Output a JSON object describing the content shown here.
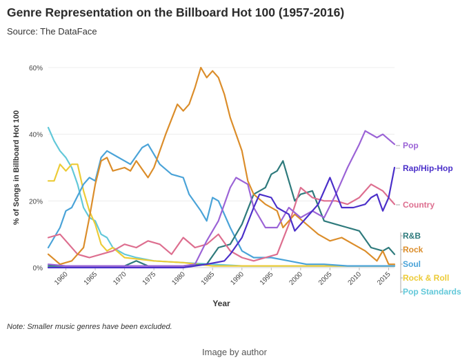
{
  "header": {
    "title": "Genre Representation on the Billboard Hot 100 (1957-2016)",
    "subtitle": "Source: The DataFace"
  },
  "footer": {
    "note": "Note: Smaller music genres have been excluded.",
    "caption": "Image by author"
  },
  "chart_data": {
    "type": "line",
    "title": "Genre Representation on the Billboard Hot 100 (1957-2016)",
    "xlabel": "Year",
    "ylabel": "% of Songs in Billboard Hot 100",
    "xlim": [
      1957,
      2016
    ],
    "ylim": [
      0,
      60
    ],
    "x_ticks": [
      1960,
      1965,
      1970,
      1975,
      1980,
      1985,
      1990,
      1995,
      2000,
      2005,
      2010,
      2015
    ],
    "y_ticks": [
      0,
      20,
      40,
      60
    ],
    "y_tick_labels": [
      "0%",
      "20%",
      "40%",
      "60%"
    ],
    "grid": "horizontal",
    "legend": "direct labels right of lines",
    "series": [
      {
        "name": "Pop",
        "color": "#9b63d6",
        "points": [
          [
            1957,
            1
          ],
          [
            1960,
            0.5
          ],
          [
            1965,
            0.5
          ],
          [
            1970,
            0.5
          ],
          [
            1975,
            0.5
          ],
          [
            1980,
            0.5
          ],
          [
            1982,
            1
          ],
          [
            1984,
            8
          ],
          [
            1986,
            14
          ],
          [
            1988,
            24
          ],
          [
            1989,
            27
          ],
          [
            1991,
            25
          ],
          [
            1992,
            18
          ],
          [
            1994,
            12
          ],
          [
            1996,
            12
          ],
          [
            1998,
            18
          ],
          [
            2000,
            15
          ],
          [
            2002,
            17
          ],
          [
            2004,
            15
          ],
          [
            2006,
            22
          ],
          [
            2008,
            30
          ],
          [
            2010,
            37
          ],
          [
            2011,
            41
          ],
          [
            2013,
            39
          ],
          [
            2014,
            40
          ],
          [
            2016,
            37
          ]
        ]
      },
      {
        "name": "Rap/Hip-Hop",
        "color": "#4a2fc9",
        "points": [
          [
            1957,
            0
          ],
          [
            1978,
            0
          ],
          [
            1980,
            0
          ],
          [
            1984,
            1
          ],
          [
            1987,
            2
          ],
          [
            1988,
            4
          ],
          [
            1990,
            9
          ],
          [
            1992,
            18
          ],
          [
            1993,
            22
          ],
          [
            1995,
            21
          ],
          [
            1996,
            18
          ],
          [
            1998,
            16
          ],
          [
            1999,
            11
          ],
          [
            2001,
            15
          ],
          [
            2003,
            19
          ],
          [
            2005,
            27
          ],
          [
            2007,
            18
          ],
          [
            2009,
            18
          ],
          [
            2011,
            19
          ],
          [
            2012,
            21
          ],
          [
            2013,
            22
          ],
          [
            2014,
            17
          ],
          [
            2015,
            21
          ],
          [
            2016,
            30
          ]
        ]
      },
      {
        "name": "Country",
        "color": "#dd6e8f",
        "points": [
          [
            1957,
            9
          ],
          [
            1959,
            10
          ],
          [
            1960,
            8
          ],
          [
            1962,
            4
          ],
          [
            1964,
            3
          ],
          [
            1966,
            4
          ],
          [
            1968,
            5
          ],
          [
            1970,
            7
          ],
          [
            1972,
            6
          ],
          [
            1974,
            8
          ],
          [
            1976,
            7
          ],
          [
            1978,
            4
          ],
          [
            1980,
            9
          ],
          [
            1982,
            6
          ],
          [
            1984,
            7
          ],
          [
            1986,
            10
          ],
          [
            1988,
            5
          ],
          [
            1990,
            3
          ],
          [
            1992,
            2
          ],
          [
            1994,
            3
          ],
          [
            1996,
            4
          ],
          [
            1998,
            13
          ],
          [
            2000,
            24
          ],
          [
            2002,
            21
          ],
          [
            2004,
            20
          ],
          [
            2006,
            20
          ],
          [
            2008,
            19
          ],
          [
            2010,
            21
          ],
          [
            2012,
            25
          ],
          [
            2014,
            23
          ],
          [
            2016,
            19
          ]
        ]
      },
      {
        "name": "R&B",
        "color": "#2e7a7c",
        "points": [
          [
            1957,
            0.5
          ],
          [
            1960,
            0.5
          ],
          [
            1965,
            0.5
          ],
          [
            1970,
            0.5
          ],
          [
            1972,
            2
          ],
          [
            1974,
            0.5
          ],
          [
            1980,
            0.5
          ],
          [
            1984,
            1
          ],
          [
            1986,
            6
          ],
          [
            1988,
            7
          ],
          [
            1990,
            13
          ],
          [
            1992,
            22
          ],
          [
            1994,
            24
          ],
          [
            1995,
            28
          ],
          [
            1996,
            29
          ],
          [
            1997,
            32
          ],
          [
            1998,
            26
          ],
          [
            1999,
            20
          ],
          [
            2000,
            22
          ],
          [
            2002,
            23
          ],
          [
            2004,
            14
          ],
          [
            2006,
            13
          ],
          [
            2008,
            12
          ],
          [
            2010,
            11
          ],
          [
            2012,
            6
          ],
          [
            2014,
            5
          ],
          [
            2015,
            6
          ],
          [
            2016,
            4
          ]
        ]
      },
      {
        "name": "Rock",
        "color": "#db8d2a",
        "points": [
          [
            1957,
            4
          ],
          [
            1959,
            1
          ],
          [
            1961,
            2
          ],
          [
            1963,
            6
          ],
          [
            1964,
            15
          ],
          [
            1965,
            25
          ],
          [
            1966,
            32
          ],
          [
            1967,
            33
          ],
          [
            1968,
            29
          ],
          [
            1970,
            30
          ],
          [
            1971,
            29
          ],
          [
            1972,
            32
          ],
          [
            1974,
            27
          ],
          [
            1975,
            30
          ],
          [
            1977,
            40
          ],
          [
            1979,
            49
          ],
          [
            1980,
            47
          ],
          [
            1981,
            49
          ],
          [
            1982,
            54
          ],
          [
            1983,
            60
          ],
          [
            1984,
            57
          ],
          [
            1985,
            59
          ],
          [
            1986,
            57
          ],
          [
            1987,
            52
          ],
          [
            1988,
            45
          ],
          [
            1990,
            35
          ],
          [
            1991,
            26
          ],
          [
            1992,
            22
          ],
          [
            1994,
            19
          ],
          [
            1996,
            17
          ],
          [
            1997,
            12
          ],
          [
            1999,
            16
          ],
          [
            2001,
            13
          ],
          [
            2003,
            10
          ],
          [
            2005,
            8
          ],
          [
            2007,
            9
          ],
          [
            2009,
            7
          ],
          [
            2011,
            5
          ],
          [
            2013,
            2
          ],
          [
            2014,
            5
          ],
          [
            2015,
            1
          ],
          [
            2016,
            1
          ]
        ]
      },
      {
        "name": "Soul",
        "color": "#4aa3d8",
        "points": [
          [
            1957,
            6
          ],
          [
            1959,
            12
          ],
          [
            1960,
            17
          ],
          [
            1961,
            18
          ],
          [
            1963,
            25
          ],
          [
            1964,
            27
          ],
          [
            1965,
            26
          ],
          [
            1966,
            33
          ],
          [
            1967,
            35
          ],
          [
            1969,
            33
          ],
          [
            1970,
            32
          ],
          [
            1971,
            31
          ],
          [
            1973,
            36
          ],
          [
            1974,
            37
          ],
          [
            1975,
            34
          ],
          [
            1976,
            31
          ],
          [
            1978,
            28
          ],
          [
            1980,
            27
          ],
          [
            1981,
            22
          ],
          [
            1983,
            17
          ],
          [
            1984,
            14
          ],
          [
            1985,
            21
          ],
          [
            1986,
            20
          ],
          [
            1988,
            12
          ],
          [
            1990,
            5
          ],
          [
            1992,
            3
          ],
          [
            1995,
            3
          ],
          [
            1998,
            2
          ],
          [
            2001,
            1
          ],
          [
            2004,
            1
          ],
          [
            2008,
            0.5
          ],
          [
            2012,
            0.5
          ],
          [
            2016,
            0.5
          ]
        ]
      },
      {
        "name": "Rock & Roll",
        "color": "#eccb37",
        "points": [
          [
            1957,
            26
          ],
          [
            1958,
            26
          ],
          [
            1959,
            31
          ],
          [
            1960,
            29
          ],
          [
            1961,
            31
          ],
          [
            1962,
            31
          ],
          [
            1963,
            23
          ],
          [
            1964,
            17
          ],
          [
            1965,
            13
          ],
          [
            1966,
            7
          ],
          [
            1967,
            5
          ],
          [
            1968,
            6
          ],
          [
            1970,
            3
          ],
          [
            1975,
            2
          ],
          [
            1980,
            1.5
          ],
          [
            1985,
            0.5
          ],
          [
            1990,
            0.5
          ],
          [
            1995,
            0.5
          ],
          [
            2000,
            0.5
          ],
          [
            2005,
            0.5
          ],
          [
            2010,
            0.5
          ],
          [
            2016,
            0.5
          ]
        ]
      },
      {
        "name": "Pop Standards",
        "color": "#62c8d9",
        "points": [
          [
            1957,
            42
          ],
          [
            1958,
            38
          ],
          [
            1959,
            35
          ],
          [
            1960,
            33
          ],
          [
            1961,
            30
          ],
          [
            1962,
            25
          ],
          [
            1963,
            18
          ],
          [
            1964,
            15
          ],
          [
            1965,
            14
          ],
          [
            1966,
            10
          ],
          [
            1967,
            9
          ],
          [
            1968,
            6
          ],
          [
            1969,
            5
          ],
          [
            1970,
            4
          ],
          [
            1972,
            3
          ],
          [
            1975,
            2
          ],
          [
            1980,
            1.5
          ],
          [
            1985,
            1
          ],
          [
            1990,
            0.5
          ],
          [
            1995,
            0.5
          ],
          [
            2000,
            0.5
          ],
          [
            2005,
            0.5
          ],
          [
            2010,
            0.5
          ],
          [
            2016,
            0.5
          ]
        ]
      }
    ]
  }
}
